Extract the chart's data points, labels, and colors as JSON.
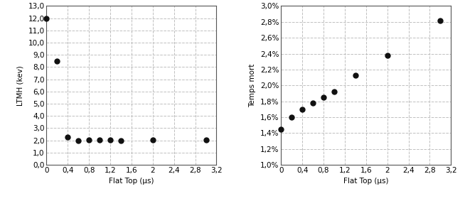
{
  "left": {
    "x": [
      0,
      0.2,
      0.4,
      0.6,
      0.8,
      1.0,
      1.2,
      1.4,
      2.0,
      3.0
    ],
    "y": [
      12.0,
      8.5,
      2.3,
      2.0,
      2.05,
      2.05,
      2.05,
      2.0,
      2.05,
      2.05
    ],
    "xlabel": "Flat Top (µs)",
    "ylabel": "LTMH (kev)",
    "xlim": [
      0,
      3.2
    ],
    "ylim": [
      0,
      13.0
    ],
    "xticks": [
      0,
      0.4,
      0.8,
      1.2,
      1.6,
      2.0,
      2.4,
      2.8,
      3.2
    ],
    "yticks": [
      0,
      1.0,
      2.0,
      3.0,
      4.0,
      5.0,
      6.0,
      7.0,
      8.0,
      9.0,
      10.0,
      11.0,
      12.0,
      13.0
    ],
    "xtick_labels": [
      "0",
      "0,4",
      "0,8",
      "1,2",
      "1,6",
      "2",
      "2,4",
      "2,8",
      "3,2"
    ],
    "ytick_labels": [
      "0,0",
      "1,0",
      "2,0",
      "3,0",
      "4,0",
      "5,0",
      "6,0",
      "7,0",
      "8,0",
      "9,0",
      "10,0",
      "11,0",
      "12,0",
      "13,0"
    ]
  },
  "right": {
    "x": [
      0,
      0.2,
      0.4,
      0.6,
      0.8,
      1.0,
      1.4,
      2.0,
      3.0
    ],
    "y": [
      0.0145,
      0.016,
      0.017,
      0.0178,
      0.0185,
      0.0192,
      0.0213,
      0.0238,
      0.0282
    ],
    "xlabel": "Flat Top (µs)",
    "ylabel": "Temps mort",
    "xlim": [
      0,
      3.2
    ],
    "ylim": [
      0.01,
      0.03
    ],
    "xticks": [
      0,
      0.4,
      0.8,
      1.2,
      1.6,
      2.0,
      2.4,
      2.8,
      3.2
    ],
    "yticks": [
      0.01,
      0.012,
      0.014,
      0.016,
      0.018,
      0.02,
      0.022,
      0.024,
      0.026,
      0.028,
      0.03
    ],
    "xtick_labels": [
      "0",
      "0,4",
      "0,8",
      "1,2",
      "1,6",
      "2",
      "2,4",
      "2,8",
      "3,2"
    ],
    "ytick_labels": [
      "1,0%",
      "1,2%",
      "1,4%",
      "1,6%",
      "1,8%",
      "2,0%",
      "2,2%",
      "2,4%",
      "2,6%",
      "2,8%",
      "3,0%"
    ]
  },
  "marker_color": "#111111",
  "marker_size": 5,
  "grid_color": "#c0c0c0",
  "grid_style": "--",
  "bg_color": "#ffffff",
  "font_size": 7.5
}
